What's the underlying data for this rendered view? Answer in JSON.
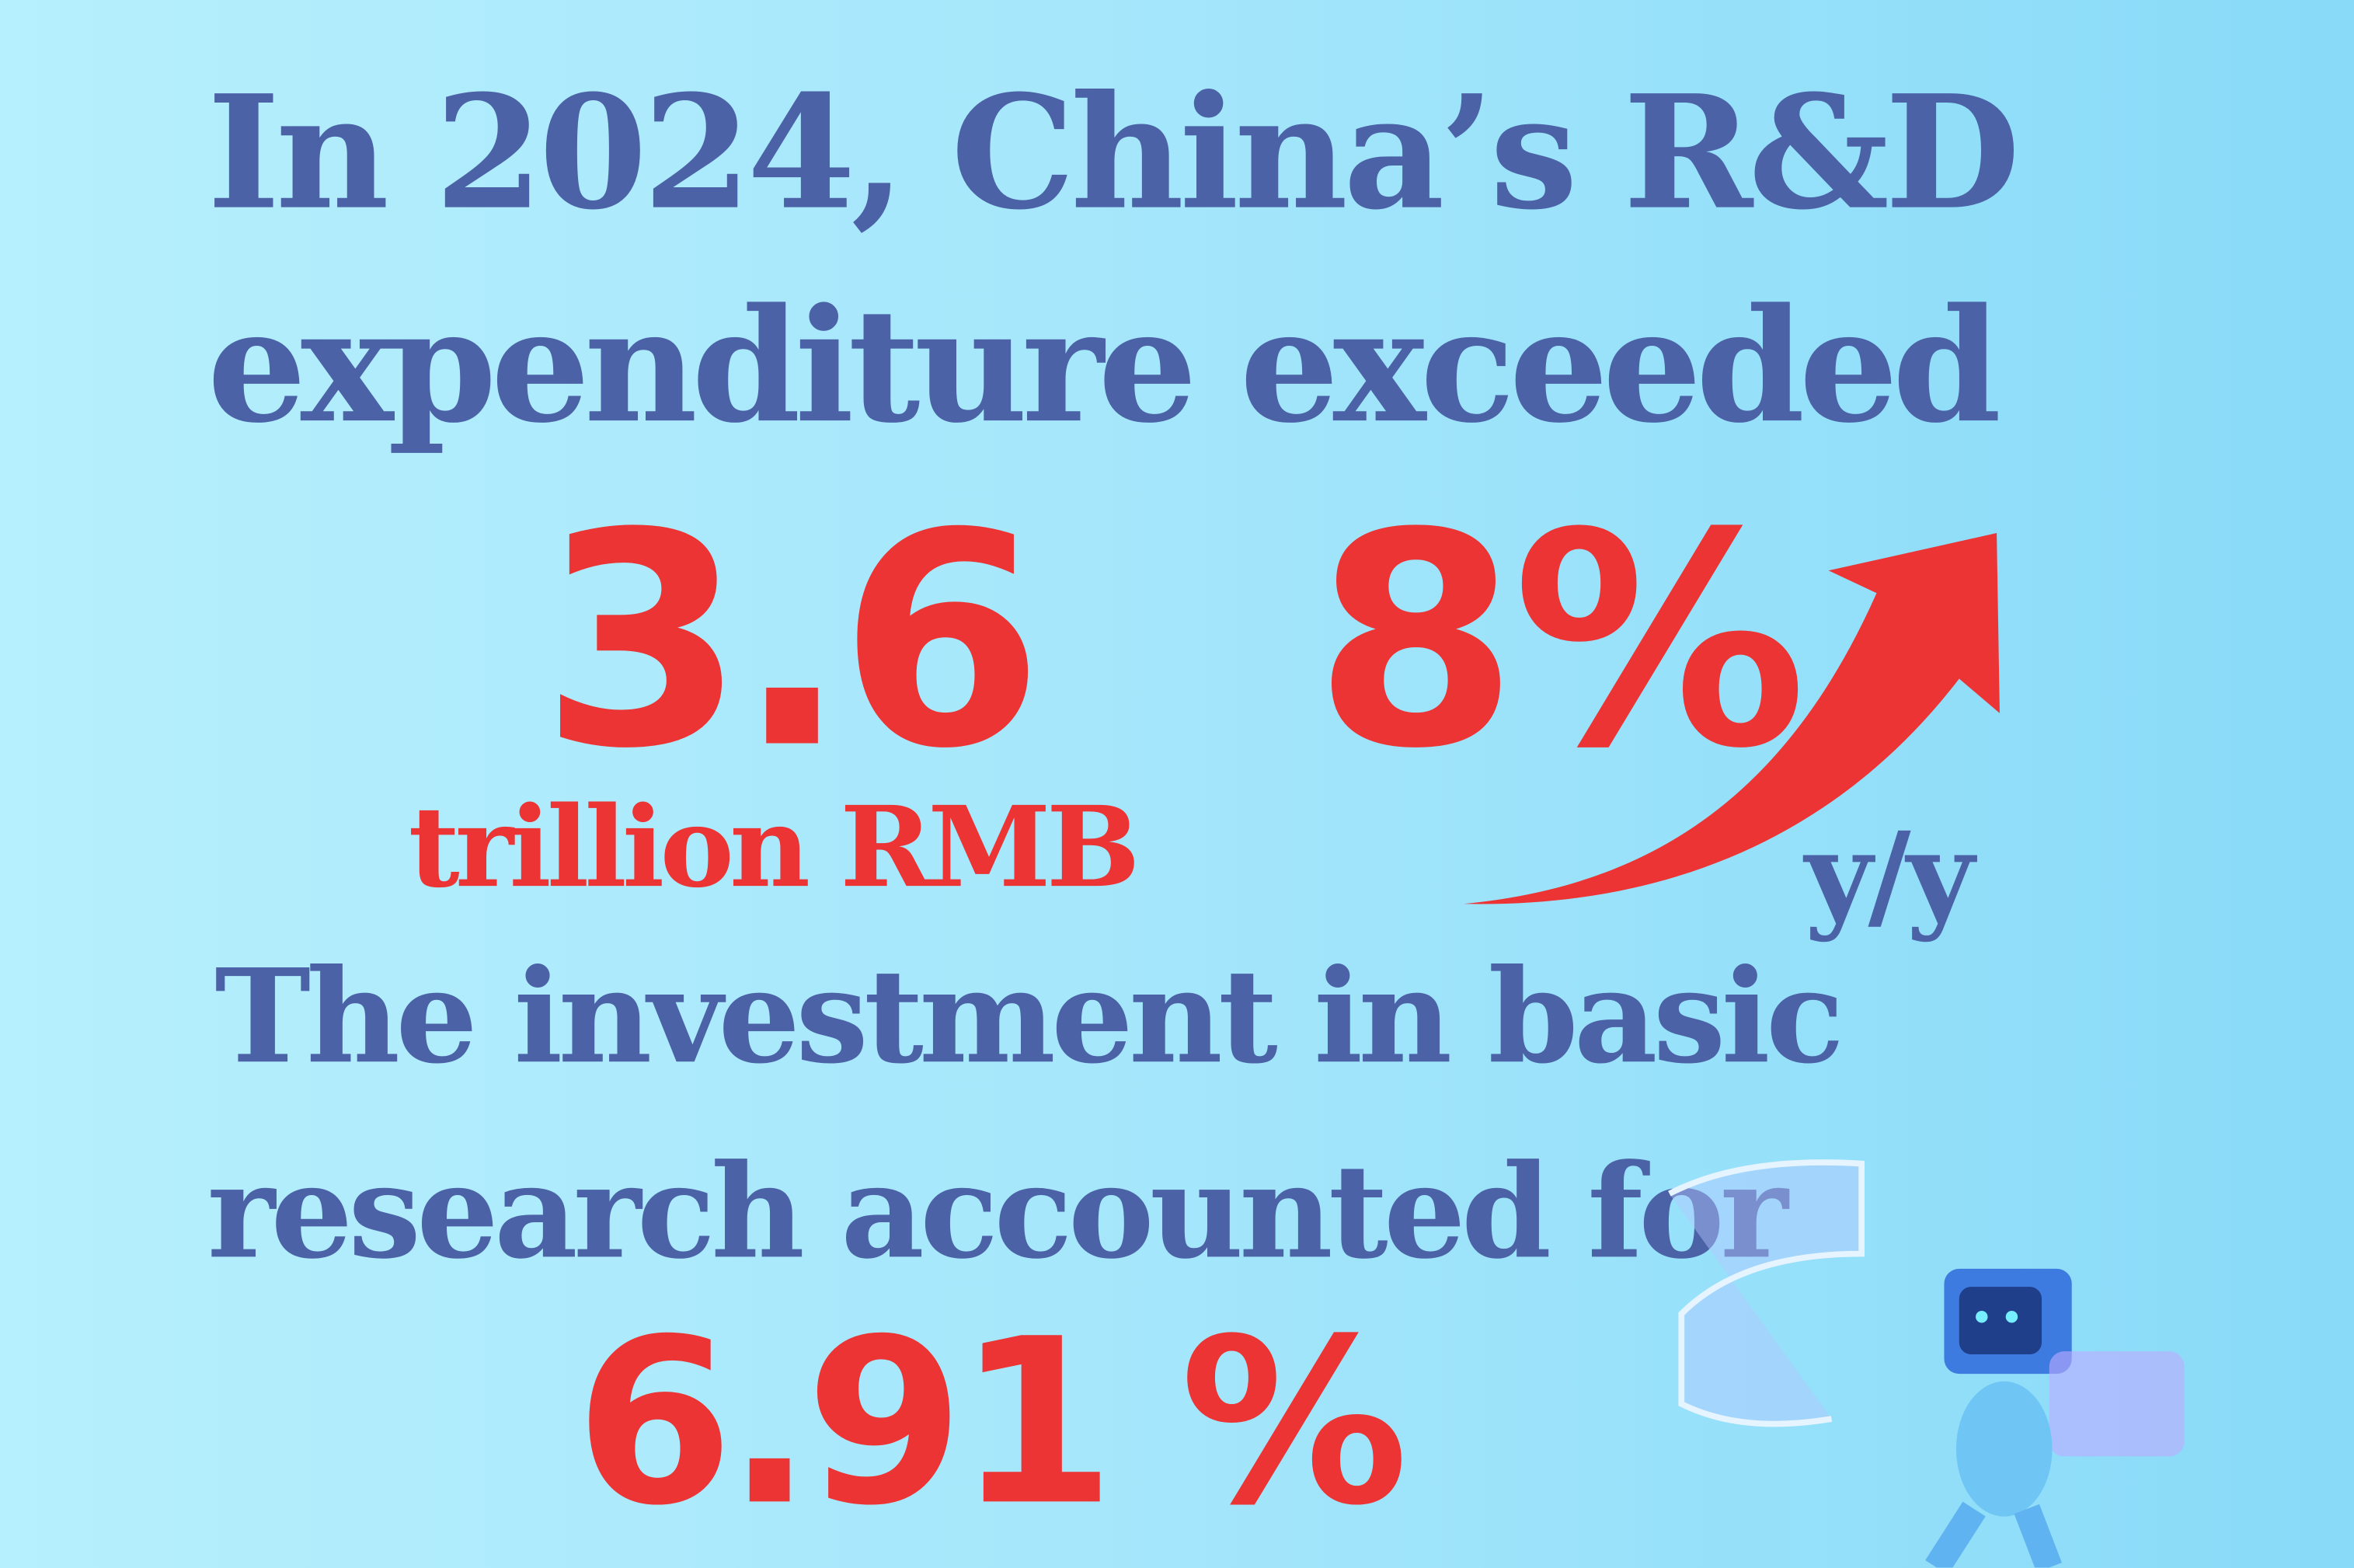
{
  "headline": {
    "line1": "In 2024, China’s R&D",
    "line2": "expenditure exceeded"
  },
  "stat1": {
    "value": "3.6",
    "unit": "trillion RMB"
  },
  "stat2": {
    "value": "8%",
    "label": "y/y",
    "trend": "arrow-up"
  },
  "subhead": {
    "line1": "The investment in basic",
    "line2": "research accounted for"
  },
  "stat3": {
    "value": "6.91 %"
  },
  "colors": {
    "blue": "#4b62a6",
    "red": "#ec3434",
    "background": "#a4e6fb"
  }
}
